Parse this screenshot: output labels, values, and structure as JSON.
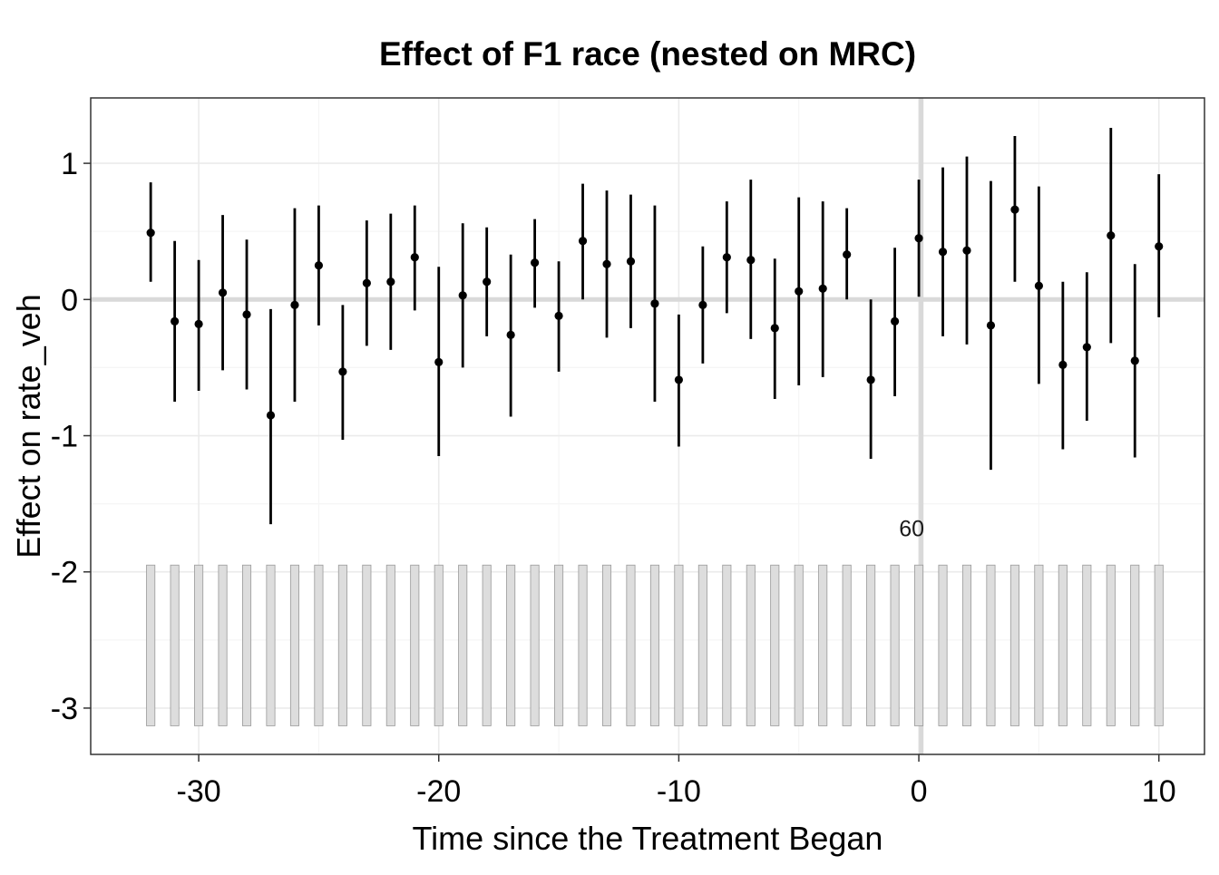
{
  "colors": {
    "point": "#000000",
    "errorbar": "#000000",
    "panel_border": "#333333",
    "grid_major": "#ebebeb",
    "grid_minor": "#f5f5f5",
    "reference_line": "#d9d9d9",
    "count_bar_fill": "#dddddd",
    "count_bar_stroke": "#999999"
  },
  "chart_data": {
    "type": "scatter",
    "title": "Effect of F1 race (nested on MRC)",
    "xlabel": "Time since the Treatment Began",
    "ylabel": "Effect on rate_veh",
    "xlim": [
      -34.5,
      11.9
    ],
    "ylim": [
      -3.34,
      1.48
    ],
    "x_ticks": [
      -30,
      -20,
      -10,
      0,
      10
    ],
    "x_tick_labels": [
      "-30",
      "-20",
      "-10",
      "0",
      "10"
    ],
    "y_ticks": [
      1,
      0,
      -1,
      -2,
      -3
    ],
    "y_tick_labels": [
      "1",
      "0",
      "-1",
      "-2",
      "-3"
    ],
    "grid": true,
    "reference_lines": {
      "horizontal_y": 0,
      "vertical_x": 0.1
    },
    "annotation": {
      "text": "60",
      "x": -0.3,
      "y": -1.68
    },
    "count_bars": {
      "ymin": -3.13,
      "ymax": -1.95,
      "width": 0.35
    },
    "series": [
      {
        "x": [
          -32,
          -31,
          -30,
          -29,
          -28,
          -27,
          -26,
          -25,
          -24,
          -23,
          -22,
          -21,
          -20,
          -19,
          -18,
          -17,
          -16,
          -15,
          -14,
          -13,
          -12,
          -11,
          -10,
          -9,
          -8,
          -7,
          -6,
          -5,
          -4,
          -3,
          -2,
          -1,
          0,
          1,
          2,
          3,
          4,
          5,
          6,
          7,
          8,
          9,
          10
        ],
        "estimate": [
          0.49,
          -0.16,
          -0.18,
          0.05,
          -0.11,
          -0.85,
          -0.04,
          0.25,
          -0.53,
          0.12,
          0.13,
          0.31,
          -0.46,
          0.03,
          0.13,
          -0.26,
          0.27,
          -0.12,
          0.43,
          0.26,
          0.28,
          -0.03,
          -0.59,
          -0.04,
          0.31,
          0.29,
          -0.21,
          0.06,
          0.08,
          0.33,
          -0.59,
          -0.16,
          0.45,
          0.35,
          0.36,
          -0.19,
          0.66,
          0.1,
          -0.48,
          -0.35,
          0.47,
          -0.45,
          0.39
        ],
        "lower": [
          0.13,
          -0.75,
          -0.67,
          -0.52,
          -0.66,
          -1.65,
          -0.75,
          -0.19,
          -1.03,
          -0.34,
          -0.37,
          -0.08,
          -1.15,
          -0.5,
          -0.27,
          -0.86,
          -0.06,
          -0.53,
          0.0,
          -0.28,
          -0.21,
          -0.75,
          -1.08,
          -0.47,
          -0.1,
          -0.29,
          -0.73,
          -0.63,
          -0.57,
          0.0,
          -1.17,
          -0.71,
          0.02,
          -0.27,
          -0.33,
          -1.25,
          0.13,
          -0.62,
          -1.1,
          -0.89,
          -0.32,
          -1.16,
          -0.13
        ],
        "upper": [
          0.86,
          0.43,
          0.29,
          0.62,
          0.44,
          -0.07,
          0.67,
          0.69,
          -0.04,
          0.58,
          0.63,
          0.69,
          0.24,
          0.56,
          0.53,
          0.33,
          0.59,
          0.28,
          0.85,
          0.8,
          0.77,
          0.69,
          -0.11,
          0.39,
          0.72,
          0.88,
          0.3,
          0.75,
          0.72,
          0.67,
          0.0,
          0.38,
          0.88,
          0.97,
          1.05,
          0.87,
          1.2,
          0.83,
          0.13,
          0.2,
          1.26,
          0.26,
          0.92
        ]
      }
    ]
  }
}
